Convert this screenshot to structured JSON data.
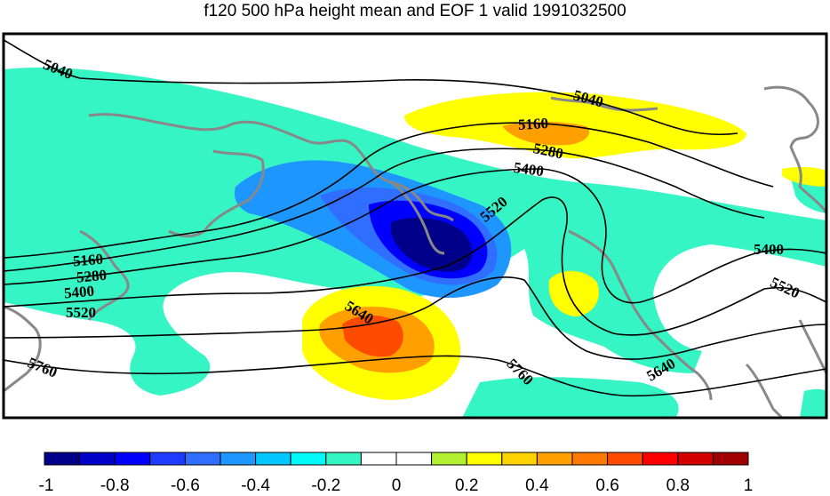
{
  "title": "f120 500 hPa height mean and EOF 1 valid 1991032500",
  "colors": {
    "bins": [
      "#00008b",
      "#0000c8",
      "#0000ff",
      "#1e3cff",
      "#2f6eff",
      "#1e96ff",
      "#00c8ff",
      "#00fafa",
      "#35f5c4",
      "#ffffff",
      "#ffffff",
      "#b4f032",
      "#ffff00",
      "#ffd200",
      "#ffa000",
      "#ff7800",
      "#ff4b00",
      "#ff0000",
      "#d20000",
      "#a00000"
    ],
    "land": "#888888",
    "contour": "#000000"
  },
  "colorbar": {
    "ticks": [
      "-1",
      "-0.8",
      "-0.6",
      "-0.4",
      "-0.2",
      "0",
      "0.2",
      "0.4",
      "0.6",
      "0.8",
      "1"
    ]
  },
  "contour_labels": [
    {
      "text": "5040",
      "id": "c5040a"
    },
    {
      "text": "5040",
      "id": "c5040b"
    },
    {
      "text": "5160",
      "id": "c5160a"
    },
    {
      "text": "5160",
      "id": "c5160b"
    },
    {
      "text": "5280",
      "id": "c5280a"
    },
    {
      "text": "5280",
      "id": "c5280b"
    },
    {
      "text": "5400",
      "id": "c5400a"
    },
    {
      "text": "5400",
      "id": "c5400b"
    },
    {
      "text": "5400",
      "id": "c5400c"
    },
    {
      "text": "5520",
      "id": "c5520a"
    },
    {
      "text": "5520",
      "id": "c5520b"
    },
    {
      "text": "5520",
      "id": "c5520c"
    },
    {
      "text": "5640",
      "id": "c5640a"
    },
    {
      "text": "5640",
      "id": "c5640b"
    },
    {
      "text": "5760",
      "id": "c5760a"
    },
    {
      "text": "5760",
      "id": "c5760b"
    }
  ]
}
